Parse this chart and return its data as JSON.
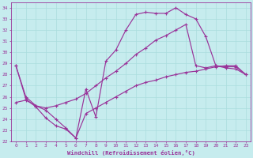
{
  "xlabel": "Windchill (Refroidissement éolien,°C)",
  "xlim": [
    -0.5,
    23.5
  ],
  "ylim": [
    22,
    34.5
  ],
  "xticks": [
    0,
    1,
    2,
    3,
    4,
    5,
    6,
    7,
    8,
    9,
    10,
    11,
    12,
    13,
    14,
    15,
    16,
    17,
    18,
    19,
    20,
    21,
    22,
    23
  ],
  "yticks": [
    22,
    23,
    24,
    25,
    26,
    27,
    28,
    29,
    30,
    31,
    32,
    33,
    34
  ],
  "background_color": "#c6ecee",
  "line_color": "#993399",
  "grid_color": "#aadddd",
  "curve1_x": [
    0,
    1,
    2,
    3,
    4,
    5,
    6,
    7,
    8,
    9,
    10,
    11,
    12,
    13,
    14,
    15,
    16,
    17,
    18,
    19,
    20,
    21,
    22,
    23
  ],
  "curve1_y": [
    28.8,
    25.8,
    25.1,
    24.1,
    23.4,
    23.1,
    22.3,
    26.7,
    24.2,
    29.2,
    30.2,
    32.0,
    33.4,
    33.6,
    33.5,
    33.5,
    34.0,
    33.4,
    33.0,
    31.4,
    28.8,
    28.7,
    28.7,
    28.0
  ],
  "curve2_x": [
    0,
    1,
    2,
    3,
    4,
    5,
    6,
    7,
    8,
    9,
    10,
    11,
    12,
    13,
    14,
    15,
    16,
    17,
    18,
    19,
    20,
    21,
    22,
    23
  ],
  "curve2_y": [
    28.8,
    26.0,
    25.2,
    25.0,
    25.2,
    25.5,
    25.8,
    26.3,
    27.0,
    27.7,
    28.3,
    29.0,
    29.8,
    30.4,
    31.1,
    31.5,
    32.0,
    32.5,
    28.8,
    28.6,
    28.8,
    28.6,
    28.5,
    28.0
  ],
  "curve3_x": [
    0,
    1,
    2,
    3,
    4,
    5,
    6,
    7,
    8,
    9,
    10,
    11,
    12,
    13,
    14,
    15,
    16,
    17,
    18,
    19,
    20,
    21,
    22,
    23
  ],
  "curve3_y": [
    25.5,
    25.7,
    25.2,
    24.8,
    24.0,
    23.2,
    22.3,
    24.5,
    25.0,
    25.5,
    26.0,
    26.5,
    27.0,
    27.3,
    27.5,
    27.8,
    28.0,
    28.2,
    28.3,
    28.5,
    28.7,
    28.8,
    28.8,
    28.0
  ]
}
